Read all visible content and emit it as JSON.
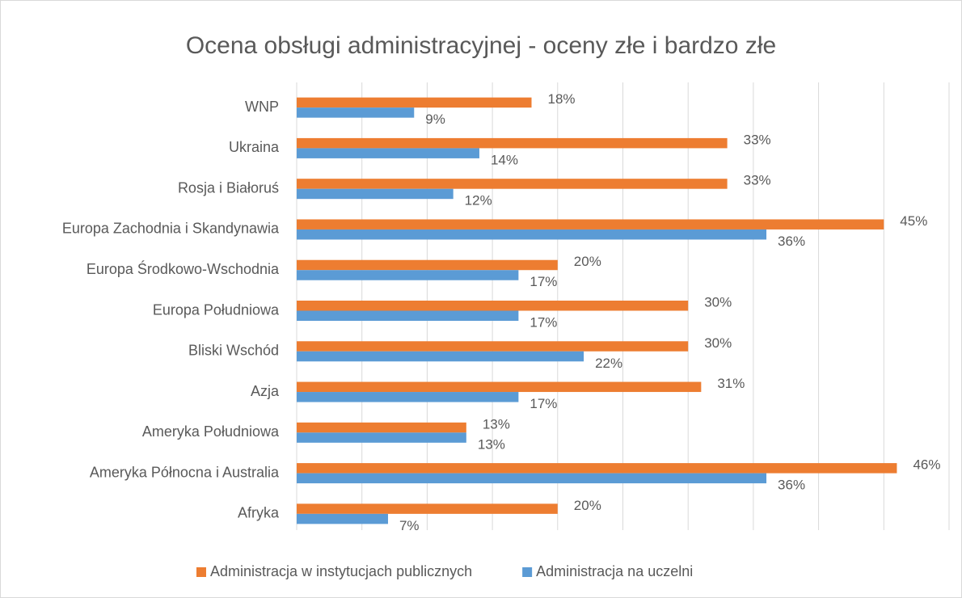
{
  "chart_data": {
    "type": "barh",
    "title": "Ocena obsługi administracyjnej - oceny złe i bardzo złe",
    "categories": [
      "WNP",
      "Ukraina",
      "Rosja i Białoruś",
      "Europa Zachodnia i Skandynawia",
      "Europa Środkowo-Wschodnia",
      "Europa Południowa",
      "Bliski Wschód",
      "Azja",
      "Ameryka Południowa",
      "Ameryka Północna i Australia",
      "Afryka"
    ],
    "series": [
      {
        "name": "Administracja w instytucjach publicznych",
        "color": "#ed7d31",
        "values": [
          18,
          33,
          33,
          45,
          20,
          30,
          30,
          31,
          13,
          46,
          20
        ],
        "value_labels": [
          "18%",
          "33%",
          "33%",
          "45%",
          "20%",
          "30%",
          "30%",
          "31%",
          "13%",
          "46%",
          "20%"
        ]
      },
      {
        "name": "Administracja na uczelni",
        "color": "#5b9bd5",
        "values": [
          9,
          14,
          12,
          36,
          17,
          17,
          22,
          17,
          13,
          36,
          7
        ],
        "value_labels": [
          "9%",
          "14%",
          "12%",
          "36%",
          "17%",
          "17%",
          "22%",
          "17%",
          "13%",
          "36%",
          "7%"
        ]
      }
    ],
    "xlim": [
      0,
      50
    ],
    "xticks": [
      0,
      5,
      10,
      15,
      20,
      25,
      30,
      35,
      40,
      45,
      50
    ],
    "grid": true,
    "legend": "bottom"
  }
}
